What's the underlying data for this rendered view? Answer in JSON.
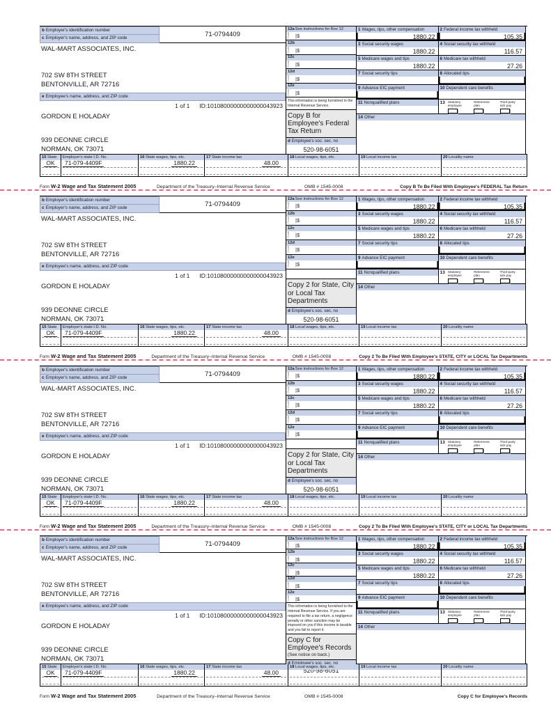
{
  "colors": {
    "header_bar": "#c7d2e9",
    "copy_box": "#e9e9e9",
    "separator": "#e86580"
  },
  "common": {
    "labels": {
      "b_letter": "b",
      "b": "Employer's identification number",
      "c_letter": "c",
      "c": "Employer's name, address, and ZIP code",
      "e_letter": "e",
      "e": "Employee's name, address, and ZIP code",
      "d_letter": "d",
      "d": "Employee's soc. sec. no"
    },
    "employer": {
      "ein": "71-0794409",
      "name": "WAL-MART ASSOCIATES, INC.",
      "street": "702 SW 8TH STREET",
      "city": "BENTONVILLE, AR 72716"
    },
    "page_of": "1 of 1",
    "doc_id": "ID:10108000000000000043923",
    "employee": {
      "name": "GORDON E HOLADAY",
      "street": "939 DEONNE CIRCLE",
      "city": "NORMAN, OK 73071"
    },
    "ssn": "520-98-6051",
    "box12": {
      "a_num": "12a",
      "a_note": "See instructions for Box 12",
      "b_num": "12b",
      "c_num": "12c",
      "d_num": "12d",
      "e_num": "12e",
      "dollar": "|$",
      "code": "Code"
    },
    "boxes": {
      "b1": {
        "num": "1",
        "label": "Wages, tips, other compensation",
        "value": "1880.22"
      },
      "b2": {
        "num": "2",
        "label": "Federal income tax withheld",
        "value": "105.35"
      },
      "b3": {
        "num": "3",
        "label": "Social security wages",
        "value": "1880.22"
      },
      "b4": {
        "num": "4",
        "label": "Social security tax withheld",
        "value": "116.57"
      },
      "b5": {
        "num": "5",
        "label": "Medicare wages and tips",
        "value": "1880.22"
      },
      "b6": {
        "num": "6",
        "label": "Medicare tax withheld",
        "value": "27.26"
      },
      "b7": {
        "num": "7",
        "label": "Social security tips",
        "value": ""
      },
      "b8": {
        "num": "8",
        "label": "Allocated tips",
        "value": ""
      },
      "b9": {
        "num": "9",
        "label": "Advance EIC payment",
        "value": ""
      },
      "b10": {
        "num": "10",
        "label": "Dependent care benefits",
        "value": ""
      },
      "b11": {
        "num": "11",
        "label": "Nonqualified plans",
        "value": ""
      },
      "b13": {
        "num": "13",
        "cb1": "Statutory employee",
        "cb2": "Retirement plan",
        "cb3": "Third-party sick pay"
      },
      "b14": {
        "num": "14",
        "label": "Other"
      }
    },
    "state": {
      "s15": {
        "num": "15",
        "label": "State",
        "value": "OK"
      },
      "sid": {
        "label": "Employer's state I.D. No.",
        "value": "71-079-4409F"
      },
      "s16": {
        "num": "16",
        "label": "State wages, tips, etc.",
        "value": "1880.22"
      },
      "s17": {
        "num": "17",
        "label": "State income tax",
        "value": "48.00"
      },
      "s18": {
        "num": "18",
        "label": "Local wages, tips, etc.",
        "value": ""
      },
      "s19": {
        "num": "19",
        "label": "Local income tax",
        "value": ""
      },
      "s20": {
        "num": "20",
        "label": "Locality name",
        "value": ""
      }
    },
    "footer": {
      "form_word": "Form",
      "title": "W-2 Wage and Tax Statement 2005",
      "dept": "Department of the Treasury–Internal Revenue Service",
      "omb": "OMB # 1545-0008"
    }
  },
  "forms": [
    {
      "info_text": "This information is being furnished to the Internal Revenue Service.",
      "copy_title": "Copy B for Employee's Federal Tax Return",
      "copy_note": "",
      "footer_copy": "Copy B To Be Filed With Employee's FEDERAL Tax Return"
    },
    {
      "info_text": "",
      "copy_title": "Copy 2 for State, City or Local Tax Departments",
      "copy_note": "",
      "footer_copy": "Copy 2 To Be Filed With Employee's STATE, CITY or LOCAL Tax Departments"
    },
    {
      "info_text": "",
      "copy_title": "Copy 2 for State, City or Local Tax Departments",
      "copy_note": "",
      "footer_copy": "Copy 2 To Be Filed With Employee's STATE, CITY or LOCAL Tax Departments"
    },
    {
      "info_text": "This information is being furnished to the Internal Revenue Service. If you are required to file a tax return, a negligence penalty or other sanction may be imposed on you if this income is taxable and you fail to report it.",
      "copy_title": "Copy C for Employee's Records",
      "copy_note": "(See notice on back.)",
      "footer_copy": "Copy C for Employee's Records"
    }
  ]
}
